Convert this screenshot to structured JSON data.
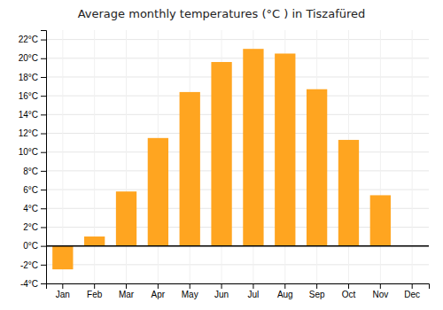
{
  "chart_data": {
    "type": "bar",
    "title": "Average monthly temperatures (°C ) in Tiszafüred",
    "categories": [
      "Jan",
      "Feb",
      "Mar",
      "Apr",
      "May",
      "Jun",
      "Jul",
      "Aug",
      "Sep",
      "Oct",
      "Nov",
      "Dec"
    ],
    "values": [
      -2.5,
      1.0,
      5.8,
      11.5,
      16.4,
      19.6,
      21.0,
      20.5,
      16.7,
      11.3,
      5.4,
      0.0
    ],
    "color": "#FFA520",
    "ylim": [
      -4,
      23
    ],
    "yticks": [
      {
        "value": -4,
        "label": "-4°C"
      },
      {
        "value": -2,
        "label": "-2°C"
      },
      {
        "value": 0,
        "label": "0°C"
      },
      {
        "value": 2,
        "label": "2°C"
      },
      {
        "value": 4,
        "label": "4°C"
      },
      {
        "value": 6,
        "label": "6°C"
      },
      {
        "value": 8,
        "label": "8°C"
      },
      {
        "value": 10,
        "label": "10°C"
      },
      {
        "value": 12,
        "label": "12°C"
      },
      {
        "value": 14,
        "label": "14°C"
      },
      {
        "value": 16,
        "label": "16°C"
      },
      {
        "value": 18,
        "label": "18°C"
      },
      {
        "value": 20,
        "label": "20°C"
      },
      {
        "value": 22,
        "label": "22°C"
      }
    ],
    "grid": true
  }
}
